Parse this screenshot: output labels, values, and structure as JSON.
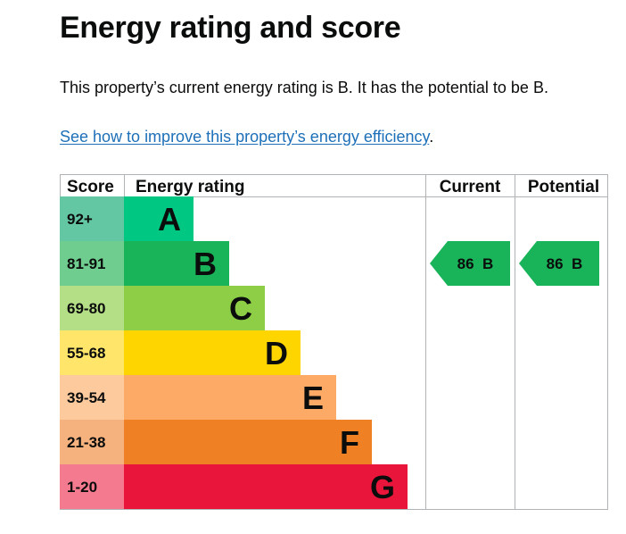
{
  "heading": "Energy rating and score",
  "summary": "This property’s current energy rating is B. It has the potential to be B.",
  "link": {
    "text": "See how to improve this property’s energy efficiency",
    "suffix": "."
  },
  "chart_data": {
    "type": "table",
    "columns": [
      "Score",
      "Energy rating",
      "Current",
      "Potential"
    ],
    "bands": [
      {
        "range": "92+",
        "letter": "A",
        "color": "#00c781",
        "score_color": "#64c7a4"
      },
      {
        "range": "81-91",
        "letter": "B",
        "color": "#19b459",
        "score_color": "#6fce8f"
      },
      {
        "range": "69-80",
        "letter": "C",
        "color": "#8dce46",
        "score_color": "#b4df86"
      },
      {
        "range": "55-68",
        "letter": "D",
        "color": "#ffd500",
        "score_color": "#ffe66a"
      },
      {
        "range": "39-54",
        "letter": "E",
        "color": "#fcaa65",
        "score_color": "#fdca9e"
      },
      {
        "range": "21-38",
        "letter": "F",
        "color": "#ef8023",
        "score_color": "#f5b27f"
      },
      {
        "range": "1-20",
        "letter": "G",
        "color": "#e9153b",
        "score_color": "#f47a8f"
      }
    ],
    "current": {
      "score": 86,
      "letter": "B",
      "label": "86  B",
      "color": "#19b459"
    },
    "potential": {
      "score": 86,
      "letter": "B",
      "label": "86  B",
      "color": "#19b459"
    }
  }
}
